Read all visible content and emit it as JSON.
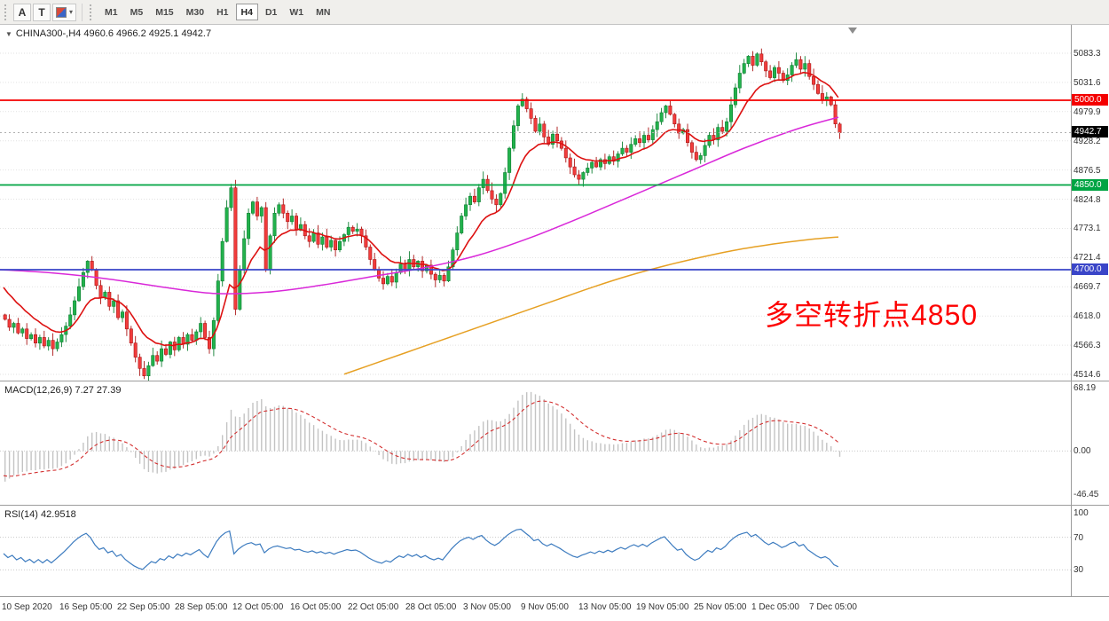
{
  "toolbar": {
    "tool_a": "A",
    "tool_t": "T",
    "timeframes": [
      "M1",
      "M5",
      "M15",
      "M30",
      "H1",
      "H4",
      "D1",
      "W1",
      "MN"
    ],
    "active_timeframe": "H4"
  },
  "chart_header": {
    "title": "CHINA300-,H4 4960.6 4966.2 4925.1 4942.7"
  },
  "annotation": {
    "text": "多空转折点4850",
    "color": "#fd0000"
  },
  "price_axis": {
    "grid_labels": [
      "5083.3",
      "5031.6",
      "4979.9",
      "4928.2",
      "4876.5",
      "4824.8",
      "4773.1",
      "4721.4",
      "4669.7",
      "4618.0",
      "4566.3",
      "4514.6"
    ],
    "current_badge": "4942.7"
  },
  "chart_data": {
    "type": "candlestick",
    "symbol": "CHINA300-",
    "timeframe": "H4",
    "ohlc_display": {
      "open": "4960.6",
      "high": "4966.2",
      "low": "4925.1",
      "close": "4942.7"
    },
    "x_labels": [
      "10 Sep 2020",
      "16 Sep 05:00",
      "22 Sep 05:00",
      "28 Sep 05:00",
      "12 Oct 05:00",
      "16 Oct 05:00",
      "22 Oct 05:00",
      "28 Oct 05:00",
      "3 Nov 05:00",
      "9 Nov 05:00",
      "13 Nov 05:00",
      "19 Nov 05:00",
      "25 Nov 05:00",
      "1 Dec 05:00",
      "7 Dec 05:00"
    ],
    "y_range": [
      4514.6,
      5083.3
    ],
    "first_open": 4620,
    "closes": [
      4612,
      4598,
      4605,
      4588,
      4595,
      4578,
      4585,
      4570,
      4580,
      4565,
      4575,
      4560,
      4572,
      4585,
      4600,
      4620,
      4645,
      4670,
      4695,
      4715,
      4700,
      4672,
      4650,
      4660,
      4635,
      4645,
      4615,
      4625,
      4595,
      4570,
      4545,
      4525,
      4512,
      4530,
      4548,
      4538,
      4560,
      4550,
      4572,
      4558,
      4580,
      4568,
      4585,
      4575,
      4590,
      4605,
      4580,
      4560,
      4610,
      4680,
      4750,
      4810,
      4845,
      4630,
      4700,
      4755,
      4800,
      4820,
      4795,
      4810,
      4700,
      4760,
      4800,
      4815,
      4800,
      4785,
      4795,
      4770,
      4780,
      4760,
      4750,
      4765,
      4745,
      4758,
      4740,
      4752,
      4735,
      4750,
      4762,
      4775,
      4768,
      4772,
      4760,
      4740,
      4718,
      4700,
      4685,
      4675,
      4688,
      4678,
      4695,
      4710,
      4700,
      4718,
      4705,
      4715,
      4698,
      4708,
      4692,
      4682,
      4690,
      4680,
      4705,
      4735,
      4765,
      4795,
      4815,
      4830,
      4820,
      4845,
      4860,
      4840,
      4825,
      4815,
      4835,
      4872,
      4915,
      4955,
      4990,
      5002,
      4985,
      4968,
      4945,
      4958,
      4935,
      4922,
      4940,
      4928,
      4915,
      4898,
      4882,
      4868,
      4860,
      4872,
      4880,
      4890,
      4882,
      4895,
      4888,
      4900,
      4892,
      4905,
      4915,
      4908,
      4922,
      4932,
      4925,
      4938,
      4930,
      4948,
      4962,
      4978,
      4990,
      4975,
      4958,
      4942,
      4948,
      4925,
      4908,
      4895,
      4902,
      4920,
      4938,
      4930,
      4952,
      4945,
      4962,
      4992,
      5022,
      5048,
      5065,
      5078,
      5062,
      5082,
      5068,
      5052,
      5040,
      5058,
      5048,
      5035,
      5045,
      5062,
      5072,
      5055,
      5065,
      5042,
      5028,
      5012,
      5000,
      5006,
      4992,
      4958,
      4942.7
    ],
    "h_lines": [
      {
        "price": 5000.0,
        "label": "5000.0",
        "color": "#f40000"
      },
      {
        "price": 4850.0,
        "label": "4850.0",
        "color": "#00a443"
      },
      {
        "price": 4700.0,
        "label": "4700.0",
        "color": "#3a45c8"
      }
    ],
    "current_price": 4942.7,
    "moving_averages": [
      {
        "name": "fast-red",
        "color": "#dd1111",
        "type": "ema",
        "period": 13,
        "seed": 4678
      },
      {
        "name": "mid-magenta",
        "color": "#d928d9",
        "points": [
          [
            0,
            4700
          ],
          [
            60,
            4694
          ],
          [
            120,
            4684
          ],
          [
            180,
            4670
          ],
          [
            240,
            4658
          ],
          [
            300,
            4660
          ],
          [
            360,
            4672
          ],
          [
            420,
            4688
          ],
          [
            480,
            4704
          ],
          [
            540,
            4726
          ],
          [
            600,
            4758
          ],
          [
            660,
            4796
          ],
          [
            720,
            4836
          ],
          [
            780,
            4876
          ],
          [
            840,
            4916
          ],
          [
            900,
            4950
          ],
          [
            945,
            4970
          ]
        ]
      },
      {
        "name": "slow-orange",
        "color": "#e6a023",
        "points": [
          [
            388,
            4515
          ],
          [
            430,
            4538
          ],
          [
            470,
            4560
          ],
          [
            510,
            4582
          ],
          [
            550,
            4604
          ],
          [
            590,
            4626
          ],
          [
            630,
            4648
          ],
          [
            670,
            4670
          ],
          [
            710,
            4690
          ],
          [
            750,
            4707
          ],
          [
            790,
            4722
          ],
          [
            830,
            4735
          ],
          [
            870,
            4745
          ],
          [
            910,
            4753
          ],
          [
            945,
            4758
          ]
        ]
      }
    ],
    "indicators": [
      {
        "name": "MACD",
        "label": "MACD(12,26,9) 7.27 27.39",
        "params": [
          12,
          26,
          9
        ],
        "values": {
          "macd": 7.27,
          "signal": 27.39
        },
        "scale": [
          "68.19",
          "0.00",
          "-46.45"
        ]
      },
      {
        "name": "RSI",
        "label": "RSI(14) 42.9518",
        "period": 14,
        "value": 42.9518,
        "scale": [
          "100",
          "70",
          "30"
        ],
        "levels": [
          70,
          30
        ]
      }
    ],
    "colors": {
      "up_fill": "#22b24c",
      "up_stroke": "#0e7f32",
      "down_fill": "#f23c3c",
      "down_stroke": "#ab1414",
      "grid": "#e2e2e2",
      "macd_bar": "#c3c3c3",
      "macd_signal": "#d32f2f",
      "rsi_line": "#3c7bbf",
      "current_price_line": "#b0b0b0",
      "current_badge_bg": "#000000"
    }
  }
}
